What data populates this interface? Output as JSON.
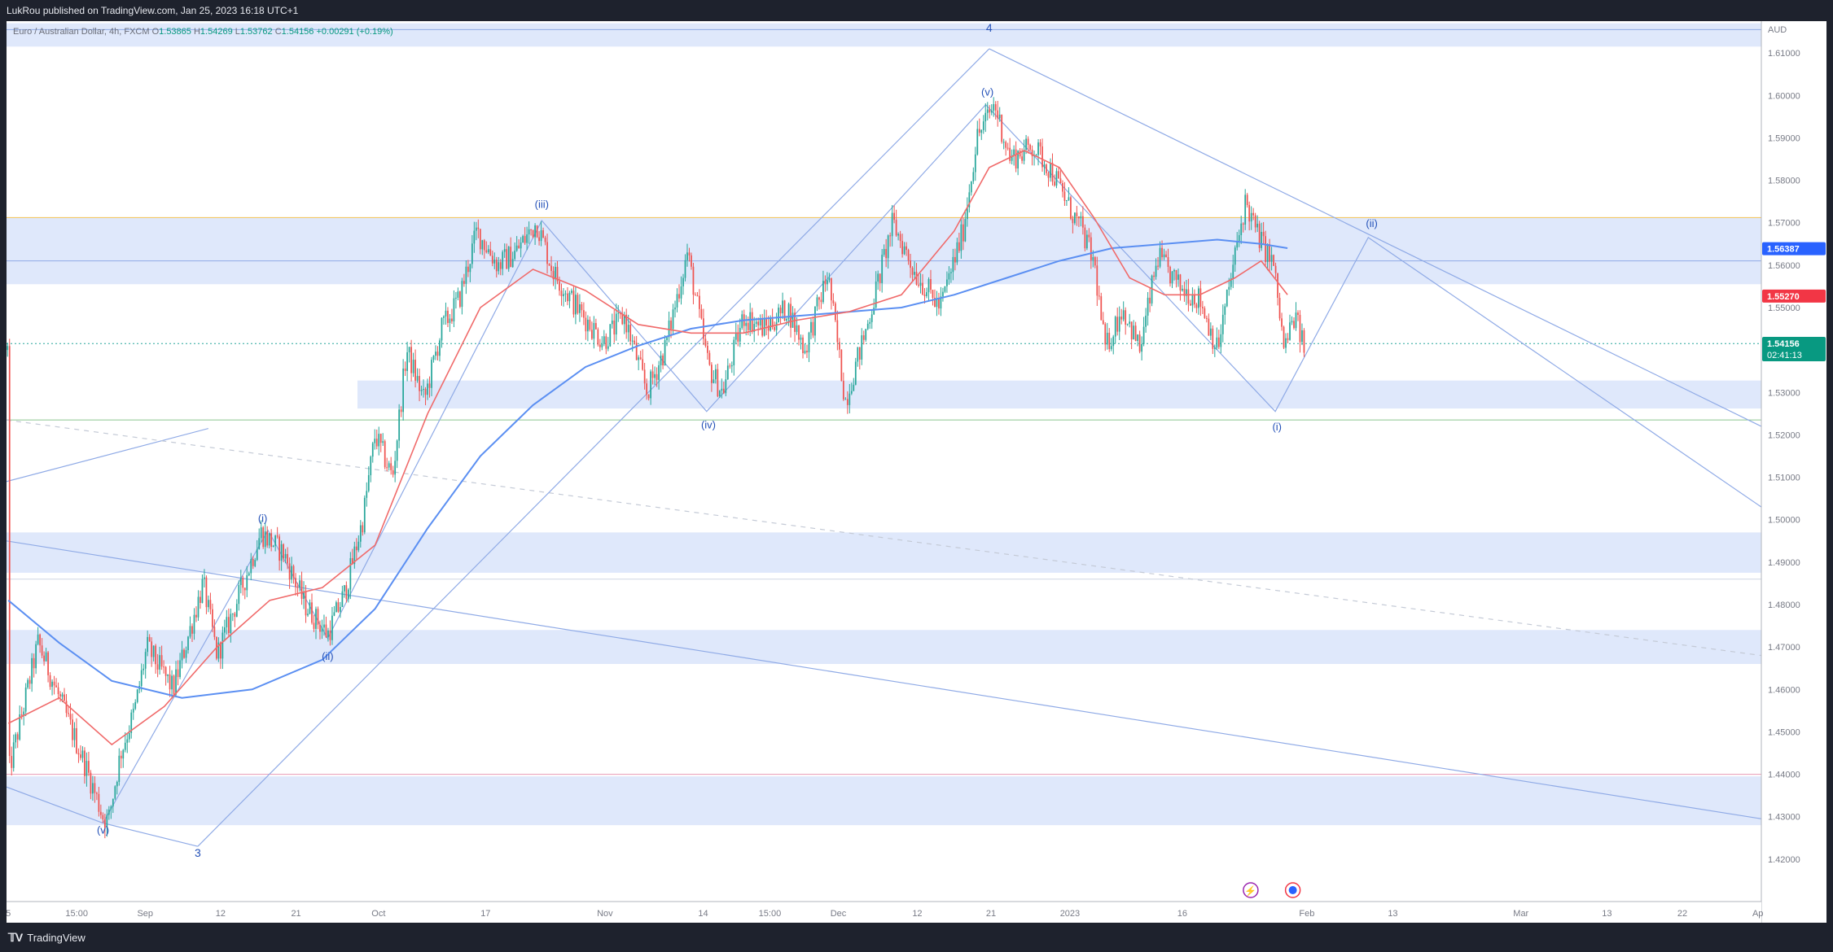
{
  "header": {
    "published_text": "LukRou published on TradingView.com, Jan 25, 2023 16:18 UTC+1"
  },
  "legend": {
    "symbol": "Euro / Australian Dollar, 4h, FXCM",
    "open_label": "O",
    "open": "1.53865",
    "high_label": "H",
    "high": "1.54269",
    "low_label": "L",
    "low": "1.53762",
    "close_label": "C",
    "close": "1.54156",
    "change": "+0.00291 (+0.19%)"
  },
  "footer": {
    "brand": "TradingView"
  },
  "colors": {
    "up": "#26a69a",
    "down": "#ef5350",
    "ema_short": "#f06a6a",
    "ema_long": "#5b8ff2",
    "zone": "#dfe8fb",
    "trend": "#8faae6",
    "label": "#2451b8",
    "badge_blue": "#2962ff",
    "badge_red": "#f23645",
    "badge_green": "#089981"
  },
  "chart_data": {
    "type": "candlestick",
    "currency_label": "AUD",
    "ylim": [
      1.41,
      1.6175
    ],
    "y_ticks": [
      "1.61000",
      "1.60000",
      "1.59000",
      "1.58000",
      "1.57000",
      "1.56000",
      "1.55000",
      "1.54000",
      "1.53000",
      "1.52000",
      "1.51000",
      "1.50000",
      "1.49000",
      "1.48000",
      "1.47000",
      "1.46000",
      "1.45000",
      "1.44000",
      "1.43000",
      "1.42000"
    ],
    "x_ticks": [
      {
        "label": "5",
        "pos": 0.001
      },
      {
        "label": "15:00",
        "pos": 0.04
      },
      {
        "label": "Sep",
        "pos": 0.079
      },
      {
        "label": "12",
        "pos": 0.122
      },
      {
        "label": "21",
        "pos": 0.165
      },
      {
        "label": "Oct",
        "pos": 0.212
      },
      {
        "label": "17",
        "pos": 0.273
      },
      {
        "label": "Nov",
        "pos": 0.341
      },
      {
        "label": "14",
        "pos": 0.397
      },
      {
        "label": "15:00",
        "pos": 0.435
      },
      {
        "label": "Dec",
        "pos": 0.474
      },
      {
        "label": "12",
        "pos": 0.519
      },
      {
        "label": "21",
        "pos": 0.561
      },
      {
        "label": "2023",
        "pos": 0.606
      },
      {
        "label": "16",
        "pos": 0.67
      },
      {
        "label": "Feb",
        "pos": 0.741
      },
      {
        "label": "13",
        "pos": 0.79
      },
      {
        "label": "Mar",
        "pos": 0.863
      },
      {
        "label": "13",
        "pos": 0.912
      },
      {
        "label": "22",
        "pos": 0.955
      },
      {
        "label": "Ap",
        "pos": 0.998
      }
    ],
    "price_path": [
      [
        0.001,
        1.44
      ],
      [
        0.018,
        1.471
      ],
      [
        0.03,
        1.458
      ],
      [
        0.045,
        1.442
      ],
      [
        0.055,
        1.43
      ],
      [
        0.058,
        1.429
      ],
      [
        0.065,
        1.445
      ],
      [
        0.073,
        1.455
      ],
      [
        0.08,
        1.47
      ],
      [
        0.095,
        1.46
      ],
      [
        0.112,
        1.485
      ],
      [
        0.12,
        1.468
      ],
      [
        0.135,
        1.485
      ],
      [
        0.145,
        1.497
      ],
      [
        0.158,
        1.492
      ],
      [
        0.17,
        1.48
      ],
      [
        0.183,
        1.473
      ],
      [
        0.193,
        1.483
      ],
      [
        0.203,
        1.5
      ],
      [
        0.21,
        1.52
      ],
      [
        0.22,
        1.51
      ],
      [
        0.228,
        1.54
      ],
      [
        0.238,
        1.528
      ],
      [
        0.248,
        1.545
      ],
      [
        0.258,
        1.552
      ],
      [
        0.268,
        1.568
      ],
      [
        0.28,
        1.56
      ],
      [
        0.29,
        1.563
      ],
      [
        0.302,
        1.57
      ],
      [
        0.312,
        1.558
      ],
      [
        0.325,
        1.55
      ],
      [
        0.34,
        1.542
      ],
      [
        0.352,
        1.548
      ],
      [
        0.365,
        1.53
      ],
      [
        0.375,
        1.54
      ],
      [
        0.388,
        1.563
      ],
      [
        0.4,
        1.536
      ],
      [
        0.408,
        1.53
      ],
      [
        0.42,
        1.548
      ],
      [
        0.432,
        1.545
      ],
      [
        0.445,
        1.55
      ],
      [
        0.455,
        1.54
      ],
      [
        0.468,
        1.558
      ],
      [
        0.478,
        1.528
      ],
      [
        0.49,
        1.545
      ],
      [
        0.505,
        1.57
      ],
      [
        0.518,
        1.558
      ],
      [
        0.532,
        1.55
      ],
      [
        0.545,
        1.568
      ],
      [
        0.553,
        1.59
      ],
      [
        0.563,
        1.598
      ],
      [
        0.572,
        1.585
      ],
      [
        0.585,
        1.588
      ],
      [
        0.596,
        1.582
      ],
      [
        0.605,
        1.574
      ],
      [
        0.613,
        1.568
      ],
      [
        0.62,
        1.56
      ],
      [
        0.626,
        1.54
      ],
      [
        0.636,
        1.55
      ],
      [
        0.646,
        1.54
      ],
      [
        0.656,
        1.562
      ],
      [
        0.668,
        1.555
      ],
      [
        0.68,
        1.552
      ],
      [
        0.69,
        1.54
      ],
      [
        0.7,
        1.562
      ],
      [
        0.706,
        1.575
      ],
      [
        0.712,
        1.568
      ],
      [
        0.722,
        1.56
      ],
      [
        0.728,
        1.54
      ],
      [
        0.734,
        1.548
      ],
      [
        0.74,
        1.54
      ]
    ],
    "ema_short": [
      [
        0.001,
        1.452
      ],
      [
        0.03,
        1.458
      ],
      [
        0.06,
        1.447
      ],
      [
        0.09,
        1.456
      ],
      [
        0.12,
        1.47
      ],
      [
        0.15,
        1.481
      ],
      [
        0.18,
        1.484
      ],
      [
        0.21,
        1.494
      ],
      [
        0.24,
        1.525
      ],
      [
        0.27,
        1.55
      ],
      [
        0.3,
        1.559
      ],
      [
        0.33,
        1.554
      ],
      [
        0.36,
        1.546
      ],
      [
        0.39,
        1.544
      ],
      [
        0.42,
        1.544
      ],
      [
        0.45,
        1.547
      ],
      [
        0.48,
        1.549
      ],
      [
        0.51,
        1.553
      ],
      [
        0.54,
        1.568
      ],
      [
        0.56,
        1.583
      ],
      [
        0.58,
        1.587
      ],
      [
        0.6,
        1.583
      ],
      [
        0.62,
        1.571
      ],
      [
        0.64,
        1.557
      ],
      [
        0.66,
        1.553
      ],
      [
        0.68,
        1.553
      ],
      [
        0.7,
        1.557
      ],
      [
        0.715,
        1.561
      ],
      [
        0.73,
        1.553
      ]
    ],
    "ema_long": [
      [
        0.001,
        1.481
      ],
      [
        0.03,
        1.471
      ],
      [
        0.06,
        1.462
      ],
      [
        0.1,
        1.458
      ],
      [
        0.14,
        1.46
      ],
      [
        0.18,
        1.467
      ],
      [
        0.21,
        1.479
      ],
      [
        0.24,
        1.498
      ],
      [
        0.27,
        1.515
      ],
      [
        0.3,
        1.527
      ],
      [
        0.33,
        1.536
      ],
      [
        0.36,
        1.541
      ],
      [
        0.39,
        1.545
      ],
      [
        0.42,
        1.547
      ],
      [
        0.45,
        1.548
      ],
      [
        0.48,
        1.549
      ],
      [
        0.51,
        1.55
      ],
      [
        0.54,
        1.553
      ],
      [
        0.57,
        1.557
      ],
      [
        0.6,
        1.561
      ],
      [
        0.63,
        1.564
      ],
      [
        0.66,
        1.565
      ],
      [
        0.69,
        1.566
      ],
      [
        0.715,
        1.565
      ],
      [
        0.73,
        1.564
      ]
    ],
    "zones": [
      {
        "x0": 0.0,
        "x1": 1.0,
        "y0": 1.6115,
        "y1": 1.617
      },
      {
        "x0": 0.0,
        "x1": 1.0,
        "y0": 1.5555,
        "y1": 1.5712
      },
      {
        "x0": 0.2,
        "x1": 1.0,
        "y0": 1.5262,
        "y1": 1.5328
      },
      {
        "x0": 0.0,
        "x1": 1.0,
        "y0": 1.4875,
        "y1": 1.497
      },
      {
        "x0": 0.0,
        "x1": 1.0,
        "y0": 1.466,
        "y1": 1.474
      },
      {
        "x0": 0.0,
        "x1": 1.0,
        "y0": 1.428,
        "y1": 1.4395
      }
    ],
    "hlines": [
      {
        "y": 1.6155,
        "color": "#8faae6"
      },
      {
        "y": 1.5712,
        "color": "#f5c453"
      },
      {
        "y": 1.561,
        "color": "#8faae6"
      },
      {
        "y": 1.5415,
        "color": "#26a69a",
        "dash": true
      },
      {
        "y": 1.5235,
        "color": "#8bc58f"
      },
      {
        "y": 1.44,
        "color": "#e89ab4"
      },
      {
        "y": 1.486,
        "color": "#cfd6e4"
      }
    ],
    "trendlines": [
      {
        "points": [
          [
            0.0,
            1.509
          ],
          [
            0.115,
            1.5215
          ]
        ]
      },
      {
        "points": [
          [
            0.0,
            1.495
          ],
          [
            1.0,
            1.4295
          ]
        ]
      },
      {
        "points": [
          [
            0.0,
            1.5235
          ],
          [
            1.0,
            1.468
          ]
        ],
        "dash": true
      },
      {
        "points": [
          [
            0.0,
            1.437
          ],
          [
            0.055,
            1.4285
          ],
          [
            0.109,
            1.423
          ]
        ]
      },
      {
        "points": [
          [
            0.109,
            1.423
          ],
          [
            0.56,
            1.611
          ]
        ]
      },
      {
        "points": [
          [
            0.56,
            1.611
          ],
          [
            1.0,
            1.522
          ]
        ]
      },
      {
        "points": [
          [
            0.055,
            1.4285
          ],
          [
            0.149,
            1.4975
          ],
          [
            0.183,
            1.472
          ],
          [
            0.305,
            1.5705
          ],
          [
            0.399,
            1.5255
          ],
          [
            0.558,
            1.5978
          ]
        ]
      },
      {
        "points": [
          [
            0.558,
            1.5978
          ],
          [
            0.723,
            1.5255
          ],
          [
            0.776,
            1.5665
          ],
          [
            1.0,
            1.503
          ]
        ]
      }
    ],
    "wave_labels": [
      {
        "text": "4",
        "x": 0.56,
        "y": 1.615,
        "size": 14
      },
      {
        "text": "(v)",
        "x": 0.559,
        "y": 1.6,
        "size": 13
      },
      {
        "text": "(iii)",
        "x": 0.305,
        "y": 1.5735,
        "size": 13
      },
      {
        "text": "(iv)",
        "x": 0.4,
        "y": 1.5215,
        "size": 13
      },
      {
        "text": "(ii)",
        "x": 0.778,
        "y": 1.569,
        "size": 13
      },
      {
        "text": "(i)",
        "x": 0.724,
        "y": 1.521,
        "size": 13
      },
      {
        "text": "(i)",
        "x": 0.146,
        "y": 1.4995,
        "size": 13
      },
      {
        "text": "(ii)",
        "x": 0.183,
        "y": 1.467,
        "size": 13
      },
      {
        "text": "(v)",
        "x": 0.055,
        "y": 1.426,
        "size": 13
      },
      {
        "text": "3",
        "x": 0.109,
        "y": 1.4205,
        "size": 14
      }
    ],
    "price_badges": [
      {
        "value": "1.56387",
        "y": 1.56387,
        "color": "#2962ff"
      },
      {
        "value": "1.55270",
        "y": 1.5527,
        "color": "#f23645"
      },
      {
        "value": "1.54156",
        "y": 1.54156,
        "color": "#089981",
        "countdown": "02:41:13"
      }
    ]
  }
}
